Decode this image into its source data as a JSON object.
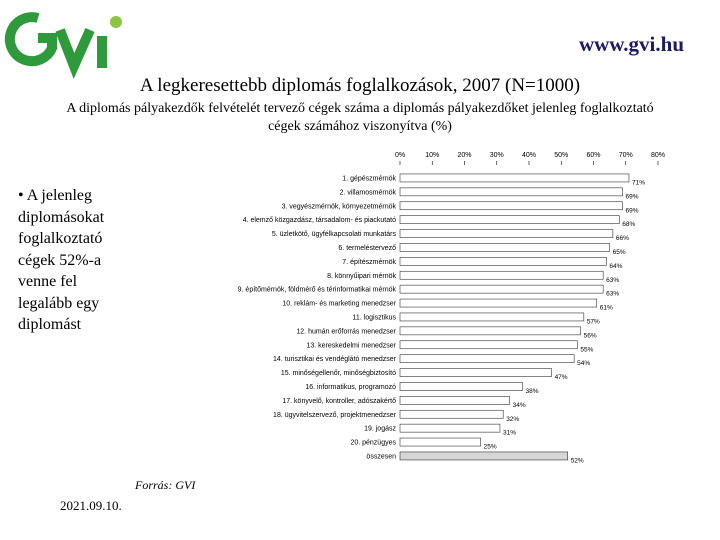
{
  "header": {
    "site_url": "www.gvi.hu",
    "title": "A legkeresettebb diplomás foglalkozások, 2007 (N=1000)",
    "subtitle": "A diplomás pályakezdők felvételét tervező cégek száma a diplomás pályakezdőket jelenleg foglalkoztató cégek számához viszonyítva (%)"
  },
  "note": "• A jelenleg diplomásokat foglalkoztató cégek 52%-a venne fel legalább egy diplomást",
  "source": "Forrás: GVI",
  "date": "2021.09.10.",
  "colors": {
    "bar": "#ffffff",
    "bar_stroke": "#333333",
    "total_bar": "#d6d6d6",
    "accent": "#2e9a3c",
    "logo_dot": "#8cc63f"
  },
  "chart_data": {
    "type": "bar",
    "orientation": "horizontal",
    "xlim": [
      0,
      80
    ],
    "ticks": [
      "0%",
      "10%",
      "20%",
      "30%",
      "40%",
      "50%",
      "60%",
      "70%",
      "80%"
    ],
    "grid": false,
    "categories": [
      "1. gépészmérnök",
      "2. villamosmérnök",
      "3. vegyészmérnök, környezetmérnök",
      "4. elemző közgazdász, társadalom- és piackutató",
      "5. üzletkötő, ügyfélkapcsolati munkatárs",
      "6. termeléstervező",
      "7. építészmérnök",
      "8. könnyűipari mérnök",
      "9. építőmérnök, földmérő és térinformatikai mérnök",
      "10. reklám- és marketing menedzser",
      "11. logisztikus",
      "12. humán erőforrás menedzser",
      "13. kereskedelmi menedzser",
      "14. turisztikai és vendéglátó menedzser",
      "15. minőségellenőr, minőségbiztosító",
      "16. informatikus, programozó",
      "17. könyvelő, kontroller, adószakértő",
      "18. ügyvitelszervező, projektmenedzser",
      "19. jogász",
      "20. pénzügyes",
      "összesen"
    ],
    "values": [
      71,
      69,
      69,
      68,
      66,
      65,
      64,
      63,
      63,
      61,
      57,
      56,
      55,
      54,
      47,
      38,
      34,
      32,
      31,
      25,
      52
    ],
    "value_labels": [
      "71%",
      "69%",
      "69%",
      "68%",
      "66%",
      "65%",
      "64%",
      "63%",
      "63%",
      "61%",
      "57%",
      "56%",
      "55%",
      "54%",
      "47%",
      "38%",
      "34%",
      "32%",
      "31%",
      "25%",
      "52%"
    ]
  }
}
